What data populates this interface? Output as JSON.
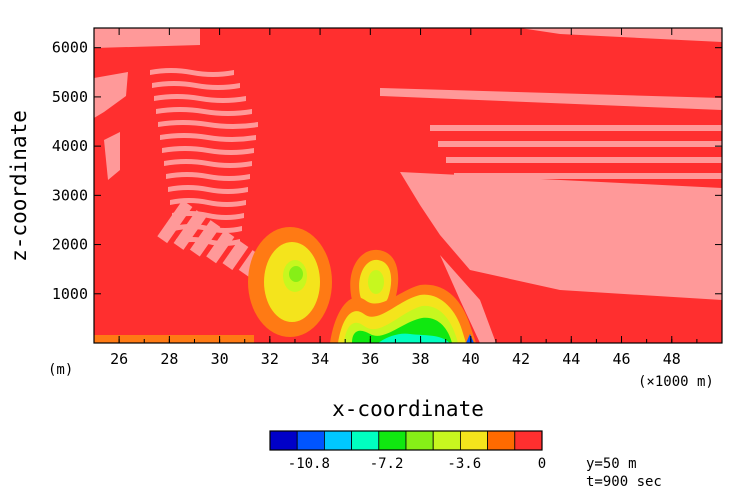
{
  "chart_data": {
    "type": "heatmap",
    "title": "",
    "xlabel": "x-coordinate",
    "ylabel": "z-coordinate",
    "x_unit_label": "(m)",
    "x_scale_label": "(×1000 m)",
    "xlim": [
      25,
      50
    ],
    "ylim": [
      0,
      6400
    ],
    "x_ticks": [
      26,
      28,
      30,
      32,
      34,
      36,
      38,
      40,
      42,
      44,
      46,
      48
    ],
    "x_tick_labels": [
      "26",
      "28",
      "30",
      "32",
      "34",
      "36",
      "38",
      "40",
      "42",
      "44",
      "46",
      "48"
    ],
    "y_ticks": [
      1000,
      2000,
      3000,
      4000,
      5000,
      6000
    ],
    "y_tick_labels": [
      "1000",
      "2000",
      "3000",
      "4000",
      "5000",
      "6000"
    ],
    "colorbar": {
      "levels": [
        -12.6,
        -11.2,
        -9.8,
        -8.4,
        -7.0,
        -5.6,
        -4.2,
        -2.8,
        -1.4,
        0
      ],
      "tick_values": [
        -10.8,
        -7.2,
        -3.6,
        0
      ],
      "tick_labels": [
        "-10.8",
        "-7.2",
        "-3.6",
        "0"
      ],
      "colors": [
        "#0000c8",
        "#0055ff",
        "#00c8ff",
        "#00ffc0",
        "#10e810",
        "#86ef17",
        "#c7f71f",
        "#f4e41c",
        "#ff6a00",
        "#ff2f2f"
      ]
    },
    "background_colors": {
      "zero": "#ff2f2f",
      "positive": "#ff9999",
      "orange": "#ff7a14"
    },
    "annotations": [
      "y=50 m",
      "t=900 sec"
    ]
  }
}
